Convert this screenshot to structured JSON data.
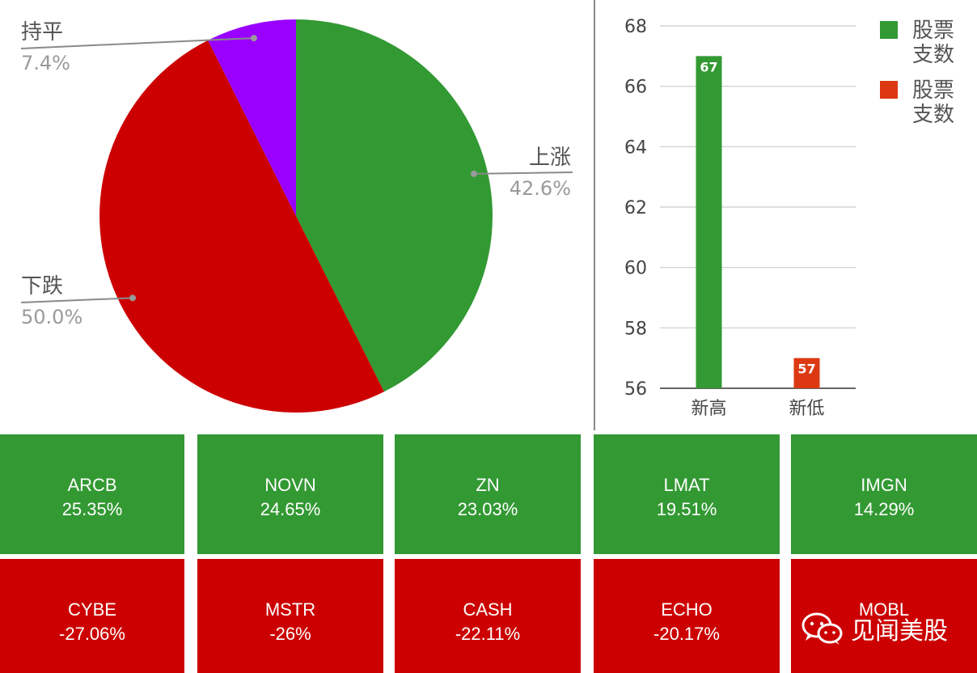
{
  "chart_data": [
    {
      "type": "pie",
      "slices": [
        {
          "label": "上涨",
          "value": 42.6,
          "value_label": "42.6%",
          "color": "#339933"
        },
        {
          "label": "下跌",
          "value": 50.0,
          "value_label": "50.0%",
          "color": "#cc0000"
        },
        {
          "label": "持平",
          "value": 7.4,
          "value_label": "7.4%",
          "color": "#9900ff"
        }
      ]
    },
    {
      "type": "bar",
      "categories": [
        "新高",
        "新低"
      ],
      "values": [
        67,
        57
      ],
      "colors": [
        "#339933",
        "#dc3912"
      ],
      "data_labels": [
        "67",
        "57"
      ],
      "ylim": [
        56,
        68
      ],
      "yticks": [
        "56",
        "58",
        "60",
        "62",
        "64",
        "66",
        "68"
      ],
      "grid": true,
      "legend_position": "right",
      "legend": [
        {
          "label": "股票支数",
          "color": "#339933"
        },
        {
          "label": "股票支数",
          "color": "#dc3912"
        }
      ]
    }
  ],
  "tiles": [
    {
      "symbol": "ARCB",
      "change": "25.35%",
      "color": "#339933"
    },
    {
      "symbol": "NOVN",
      "change": "24.65%",
      "color": "#339933"
    },
    {
      "symbol": "ZN",
      "change": "23.03%",
      "color": "#339933"
    },
    {
      "symbol": "LMAT",
      "change": "19.51%",
      "color": "#339933"
    },
    {
      "symbol": "IMGN",
      "change": "14.29%",
      "color": "#339933"
    },
    {
      "symbol": "CYBE",
      "change": "-27.06%",
      "color": "#cc0000"
    },
    {
      "symbol": "MSTR",
      "change": "-26%",
      "color": "#cc0000"
    },
    {
      "symbol": "CASH",
      "change": "-22.11%",
      "color": "#cc0000"
    },
    {
      "symbol": "ECHO",
      "change": "-20.17%",
      "color": "#cc0000"
    },
    {
      "symbol": "MOBL",
      "change": "",
      "color": "#cc0000"
    }
  ],
  "watermark": {
    "text": "见闻美股",
    "icon": "wechat-icon"
  }
}
